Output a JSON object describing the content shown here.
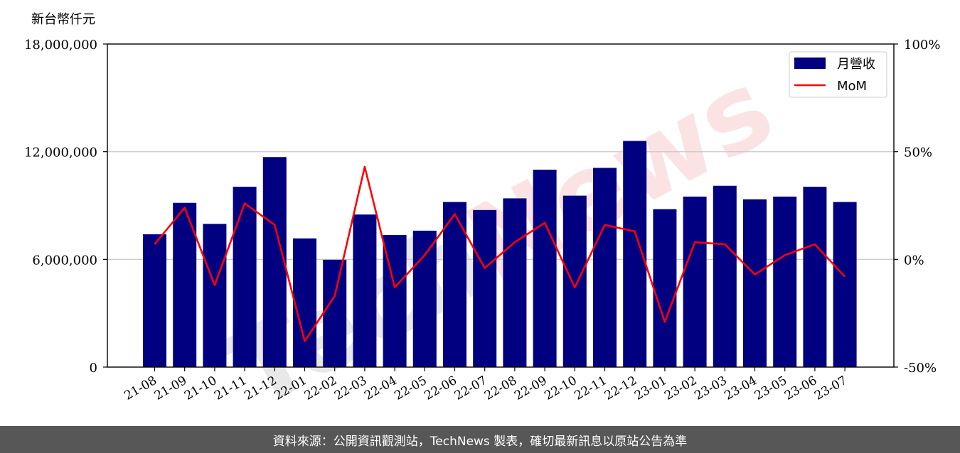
{
  "chart_data": {
    "type": "bar+line",
    "unit_label": "新台幣仟元",
    "categories": [
      "21-08",
      "21-09",
      "21-10",
      "21-11",
      "21-12",
      "22-01",
      "22-02",
      "22-03",
      "22-04",
      "22-05",
      "22-06",
      "22-07",
      "22-08",
      "22-09",
      "22-10",
      "22-11",
      "22-12",
      "23-01",
      "23-02",
      "23-03",
      "23-04",
      "23-05",
      "23-06",
      "23-07"
    ],
    "series": [
      {
        "name": "月營收",
        "kind": "bar",
        "axis": "left",
        "color": "#000080",
        "values": [
          7400000,
          9150000,
          7980000,
          10050000,
          11700000,
          7170000,
          5980000,
          8500000,
          7360000,
          7600000,
          9200000,
          8750000,
          9400000,
          11000000,
          9550000,
          11100000,
          12600000,
          8800000,
          9500000,
          10100000,
          9350000,
          9500000,
          10050000,
          9200000
        ]
      },
      {
        "name": "MoM",
        "kind": "line",
        "axis": "right",
        "color": "#ff0000",
        "values": [
          7,
          24,
          -12,
          26,
          16,
          -38,
          -17,
          43,
          -13,
          2,
          21,
          -4,
          8,
          17,
          -13,
          16,
          13,
          -29,
          8,
          7,
          -7,
          2,
          7,
          -8
        ]
      }
    ],
    "y_left": {
      "range": [
        0,
        18000000
      ],
      "ticks": [
        0,
        6000000,
        12000000,
        18000000
      ],
      "tick_labels": [
        "0",
        "6,000,000",
        "12,000,000",
        "18,000,000"
      ]
    },
    "y_right": {
      "range": [
        -50,
        100
      ],
      "ticks": [
        -50,
        0,
        50,
        100
      ],
      "tick_labels": [
        "-50%",
        "0%",
        "50%",
        "100%"
      ]
    },
    "grid": "horizontal",
    "legend": "top-right",
    "watermark": "TechNews"
  },
  "footer": {
    "text": "資料來源：公開資訊觀測站，TechNews 製表，確切最新訊息以原站公告為準"
  }
}
